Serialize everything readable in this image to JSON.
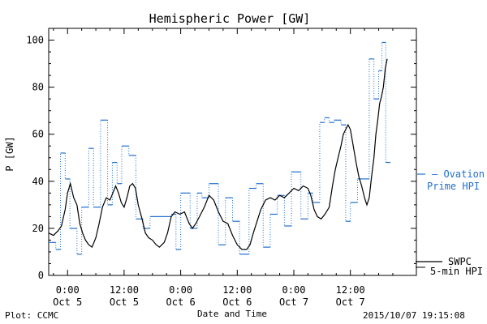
{
  "chart_data": {
    "type": "line",
    "title": "Hemispheric Power [GW]",
    "xlabel": "Date and Time",
    "ylabel": "P [GW]",
    "ylim": [
      0,
      105
    ],
    "yticks": [
      0,
      20,
      40,
      60,
      80,
      100
    ],
    "xlim": [
      -4,
      74
    ],
    "x_unit": "hours from 2015/10/05 00:00",
    "xticks": [
      {
        "x": 0,
        "time": "0:00",
        "date": "Oct 5"
      },
      {
        "x": 12,
        "time": "12:00",
        "date": "Oct 5"
      },
      {
        "x": 24,
        "time": "0:00",
        "date": "Oct 6"
      },
      {
        "x": 36,
        "time": "12:00",
        "date": "Oct 6"
      },
      {
        "x": 48,
        "time": "0:00",
        "date": "Oct 7"
      },
      {
        "x": 60,
        "time": "12:00",
        "date": "Oct 7"
      }
    ],
    "grid": false,
    "series": [
      {
        "name": "Ovation Prime HPI",
        "label_lines": [
          "Ovation",
          "Prime HPI"
        ],
        "style": "step-dotted",
        "color": "#1f6fd0",
        "x": [
          -4,
          -2.5,
          -1.5,
          -0.5,
          0.5,
          2,
          3,
          4.5,
          5.5,
          7,
          8.5,
          9.5,
          10.5,
          11.5,
          13,
          14.5,
          16,
          17.5,
          19,
          20.5,
          22,
          23,
          24,
          26,
          27.5,
          28.5,
          30,
          32,
          33.5,
          35,
          36.5,
          38.5,
          40,
          41.5,
          43,
          44.5,
          46,
          47.5,
          49.5,
          51,
          52,
          53.5,
          54.5,
          55.5,
          56.5,
          58,
          59,
          60,
          61.5,
          63,
          64,
          65,
          66,
          66.7,
          67.5
        ],
        "y": [
          14,
          11,
          52,
          41,
          20,
          9,
          29,
          54,
          29,
          66,
          30,
          48,
          39,
          55,
          51,
          24,
          20,
          25,
          25,
          25,
          26,
          11,
          35,
          20,
          35,
          33,
          39,
          13,
          33,
          23,
          9,
          37,
          39,
          12,
          26,
          34,
          21,
          44,
          24,
          35,
          31,
          65,
          67,
          65,
          66,
          64,
          23,
          31,
          41,
          41,
          92,
          75,
          87,
          99,
          48
        ]
      },
      {
        "name": "SWPC 5-min HPI",
        "label_lines": [
          "SWPC",
          "5-min HPI"
        ],
        "style": "line",
        "color": "#000000",
        "x": [
          -4,
          -3,
          -2,
          -1.3,
          -0.5,
          0,
          0.6,
          1.3,
          2,
          2.6,
          3.2,
          3.8,
          4.5,
          5.2,
          6,
          6.7,
          7.4,
          8.2,
          9,
          9.6,
          10.2,
          10.8,
          11.4,
          12,
          12.6,
          13.2,
          13.8,
          14.4,
          15,
          15.8,
          16.5,
          17.2,
          18,
          18.8,
          19.5,
          20.5,
          21.2,
          22,
          22.8,
          23.8,
          24.8,
          25.8,
          26.5,
          27.2,
          28,
          29,
          30,
          31,
          32,
          33,
          34,
          35,
          36,
          37,
          38,
          38.7,
          39.4,
          40.2,
          41,
          42,
          43,
          44,
          45,
          46,
          47,
          48,
          49,
          50,
          51,
          51.6,
          52.3,
          53,
          53.8,
          54.6,
          55.5,
          56.2,
          56.8,
          57.5,
          58,
          58.5,
          59,
          59.5,
          60,
          60.6,
          61.2,
          61.8,
          62.4,
          63,
          63.5,
          64,
          64.5,
          65,
          65.4,
          65.8,
          66.2,
          66.6,
          67,
          67.4,
          67.8
        ],
        "y": [
          18,
          17,
          19,
          21,
          28,
          35,
          39,
          33,
          30,
          22,
          18,
          15,
          13,
          12,
          16,
          22,
          29,
          33,
          32,
          35,
          38,
          35,
          31,
          29,
          33,
          38,
          39,
          37,
          30,
          24,
          18,
          16,
          15,
          13,
          12,
          14,
          18,
          25,
          27,
          26,
          27,
          22,
          20,
          22,
          25,
          29,
          34,
          32,
          27,
          23,
          22,
          17,
          13,
          11,
          11,
          13,
          18,
          23,
          28,
          32,
          33,
          32,
          34,
          33,
          35,
          37,
          36,
          38,
          37,
          34,
          28,
          25,
          24,
          26,
          29,
          38,
          45,
          51,
          55,
          60,
          62,
          64,
          62,
          55,
          48,
          42,
          38,
          33,
          30,
          33,
          42,
          50,
          60,
          66,
          73,
          76,
          80,
          88,
          92
        ]
      }
    ],
    "legend_placement": "right",
    "annotations": {
      "footer_left": "Plot: CCMC",
      "footer_right": "2015/10/07 19:15:08"
    }
  }
}
